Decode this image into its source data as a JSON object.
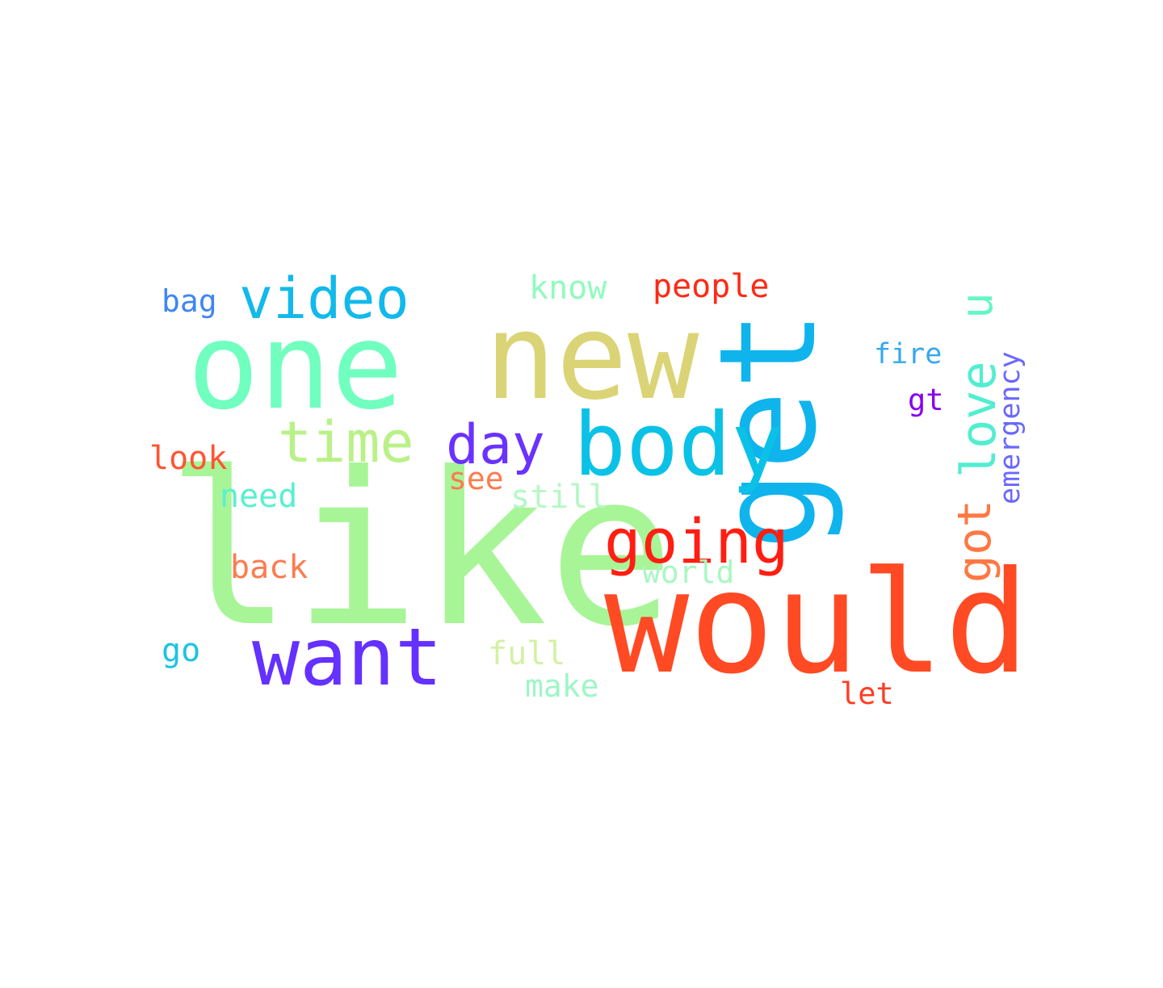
{
  "words": [
    {
      "text": "like",
      "color": "#a8f598"
    },
    {
      "text": "would",
      "color": "#ff4a24"
    },
    {
      "text": "one",
      "color": "#70ffbf"
    },
    {
      "text": "new",
      "color": "#dbd476"
    },
    {
      "text": "get",
      "color": "#0fb4ed"
    },
    {
      "text": "body",
      "color": "#0bc2e6"
    },
    {
      "text": "want",
      "color": "#6431ff"
    },
    {
      "text": "video",
      "color": "#12b9ea"
    },
    {
      "text": "time",
      "color": "#baf187"
    },
    {
      "text": "going",
      "color": "#ff1e12"
    },
    {
      "text": "day",
      "color": "#6a32ff"
    },
    {
      "text": "love",
      "color": "#52eed0"
    },
    {
      "text": "got",
      "color": "#ff7843"
    },
    {
      "text": "u",
      "color": "#66f6c6"
    },
    {
      "text": "emergency",
      "color": "#6a68ff"
    },
    {
      "text": "people",
      "color": "#ff2a16"
    },
    {
      "text": "know",
      "color": "#90fbbd"
    },
    {
      "text": "bag",
      "color": "#3f86f4"
    },
    {
      "text": "fire",
      "color": "#37a7ef"
    },
    {
      "text": "gt",
      "color": "#8800ee"
    },
    {
      "text": "look",
      "color": "#ff5532"
    },
    {
      "text": "see",
      "color": "#ff7b4d"
    },
    {
      "text": "need",
      "color": "#58f0cf"
    },
    {
      "text": "still",
      "color": "#b6f7c4"
    },
    {
      "text": "back",
      "color": "#ff7b4e"
    },
    {
      "text": "world",
      "color": "#a8f7c2"
    },
    {
      "text": "go",
      "color": "#1cc3e4"
    },
    {
      "text": "full",
      "color": "#d3f1a4"
    },
    {
      "text": "make",
      "color": "#9ef6c6"
    },
    {
      "text": "let",
      "color": "#ff3d22"
    }
  ]
}
